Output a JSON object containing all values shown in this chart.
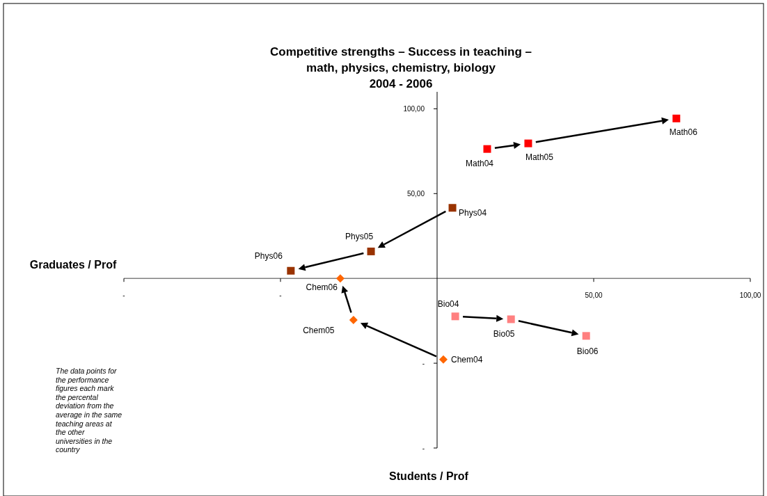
{
  "chart_data": {
    "type": "scatter",
    "title": "Competitive strengths – Success in teaching –\nmath, physics, chemistry, biology\n2004 - 2006",
    "xlabel": "Students / Prof",
    "ylabel": "Graduates / Prof",
    "xlim": [
      -100,
      100
    ],
    "xticks": [
      {
        "value": -100,
        "label": "-"
      },
      {
        "value": -50,
        "label": "-"
      },
      {
        "value": 50,
        "label": "50,00"
      },
      {
        "value": 100,
        "label": "100,00"
      }
    ],
    "ylim": [
      -100,
      110
    ],
    "yticks": [
      {
        "value": -100,
        "label": "-"
      },
      {
        "value": -50,
        "label": "-"
      },
      {
        "value": 50,
        "label": "50,00"
      },
      {
        "value": 100,
        "label": "100,00"
      }
    ],
    "grid": false,
    "series": [
      {
        "color": "#ff0000",
        "marker": "square",
        "x": [
          16.0,
          29.1,
          76.4
        ],
        "values": [
          76.3,
          79.6,
          94.3
        ]
      },
      {
        "color": "#993300",
        "marker": "square",
        "x": [
          4.9,
          -21.1,
          -46.7
        ],
        "values": [
          41.6,
          15.9,
          4.5
        ]
      },
      {
        "color": "#ff6600",
        "marker": "diamond",
        "x": [
          2.0,
          -26.7,
          -30.9
        ],
        "values": [
          -47.8,
          -24.5,
          0
        ]
      },
      {
        "color": "#ff8080",
        "marker": "square",
        "x": [
          5.8,
          23.6,
          47.6
        ],
        "values": [
          -22.4,
          -24.1,
          -33.9
        ]
      }
    ],
    "annotations": [
      {
        "text": "Math04",
        "x": 16.0,
        "y": 76.3
      },
      {
        "text": "Math05",
        "x": 29.1,
        "y": 79.6
      },
      {
        "text": "Math06",
        "x": 76.4,
        "y": 94.3
      },
      {
        "text": "Phys04",
        "x": 4.9,
        "y": 41.6
      },
      {
        "text": "Phys05",
        "x": -21.1,
        "y": 15.9
      },
      {
        "text": "Phys06",
        "x": -46.7,
        "y": 4.5
      },
      {
        "text": "Chem04",
        "x": 2.0,
        "y": -47.8
      },
      {
        "text": "Chem05",
        "x": -26.7,
        "y": -24.5
      },
      {
        "text": "Chem06",
        "x": -30.9,
        "y": 0
      },
      {
        "text": "Bio04",
        "x": 5.8,
        "y": -22.4
      },
      {
        "text": "Bio05",
        "x": 23.6,
        "y": -24.1
      },
      {
        "text": "Bio06",
        "x": 47.6,
        "y": -33.9
      },
      "The data points for the performance figures each mark the percental deviation from the average in the same teaching areas at the other universities in the country"
    ]
  }
}
